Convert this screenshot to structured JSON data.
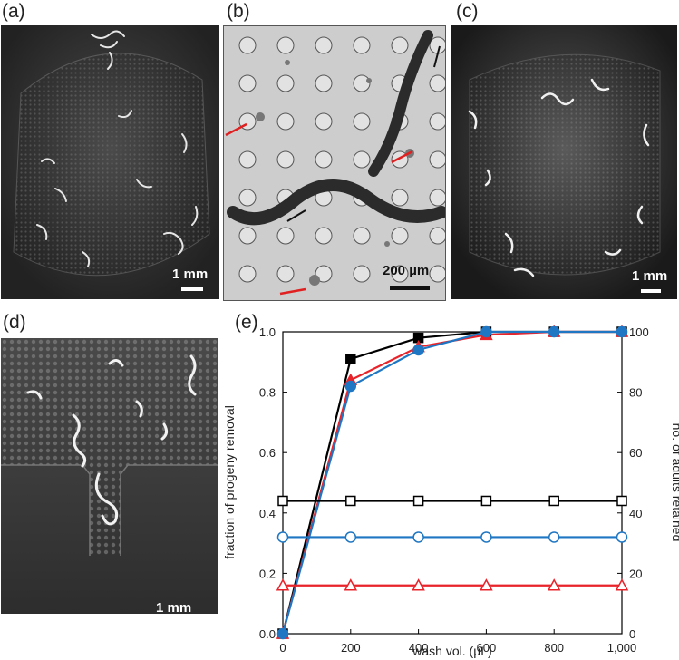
{
  "panels": {
    "a": {
      "label": "(a)",
      "scale": "1 mm"
    },
    "b": {
      "label": "(b)",
      "scale": "200 µm"
    },
    "c": {
      "label": "(c)",
      "scale": "1 mm"
    },
    "d": {
      "label": "(d)",
      "scale": "1 mm"
    },
    "e": {
      "label": "(e)"
    }
  },
  "colors": {
    "black_series": "#000000",
    "red_series": "#e8232a",
    "blue_series": "#1f77c4",
    "arrow_red": "#e02020"
  },
  "chart_data": {
    "type": "line",
    "title": "",
    "xlabel": "wash vol. (µL)",
    "ylabel": "fraction of progeny removal",
    "y2label": "no. of adults retained",
    "xlim": [
      0,
      1000
    ],
    "ylim": [
      0,
      1.0
    ],
    "y2lim": [
      0,
      100
    ],
    "x_ticks": [
      "0",
      "200",
      "400",
      "600",
      "800",
      "1,000"
    ],
    "y_ticks": [
      "0.0",
      "0.2",
      "0.4",
      "0.6",
      "0.8",
      "1.0"
    ],
    "y2_ticks": [
      "0",
      "20",
      "40",
      "60",
      "80",
      "100"
    ],
    "grid": false,
    "series": [
      {
        "axis": "left",
        "marker": "filled-square",
        "color": "#000000",
        "x": [
          0,
          200,
          400,
          600,
          800,
          1000
        ],
        "y": [
          0.0,
          0.91,
          0.98,
          1.0,
          1.0,
          1.0
        ]
      },
      {
        "axis": "left",
        "marker": "filled-triangle",
        "color": "#e8232a",
        "x": [
          0,
          200,
          400,
          600,
          800,
          1000
        ],
        "y": [
          0.0,
          0.84,
          0.95,
          0.99,
          1.0,
          1.0
        ]
      },
      {
        "axis": "left",
        "marker": "filled-circle",
        "color": "#1f77c4",
        "x": [
          0,
          200,
          400,
          600,
          800,
          1000
        ],
        "y": [
          0.0,
          0.82,
          0.94,
          1.0,
          1.0,
          1.0
        ]
      },
      {
        "axis": "right",
        "marker": "open-square",
        "color": "#000000",
        "x": [
          0,
          200,
          400,
          600,
          800,
          1000
        ],
        "y": [
          44,
          44,
          44,
          44,
          44,
          44
        ]
      },
      {
        "axis": "right",
        "marker": "open-circle",
        "color": "#1f77c4",
        "x": [
          0,
          200,
          400,
          600,
          800,
          1000
        ],
        "y": [
          32,
          32,
          32,
          32,
          32,
          32
        ]
      },
      {
        "axis": "right",
        "marker": "open-triangle",
        "color": "#e8232a",
        "x": [
          0,
          200,
          400,
          600,
          800,
          1000
        ],
        "y": [
          16,
          16,
          16,
          16,
          16,
          16
        ]
      }
    ]
  }
}
